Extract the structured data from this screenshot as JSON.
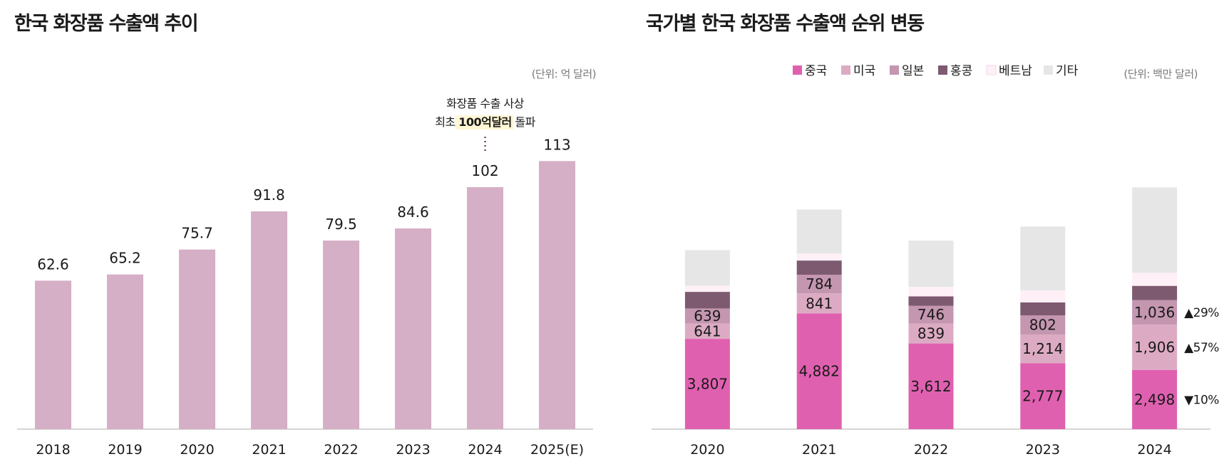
{
  "chart_data": [
    {
      "type": "bar",
      "title": "한국 화장품 수출액 추이",
      "unit": "(단위: 억 달러)",
      "categories": [
        "2018",
        "2019",
        "2020",
        "2021",
        "2022",
        "2023",
        "2024",
        "2025(E)"
      ],
      "values": [
        62.6,
        65.2,
        75.7,
        91.8,
        79.5,
        84.6,
        102,
        113
      ],
      "labels": [
        "62.6",
        "65.2",
        "75.7",
        "91.8",
        "79.5",
        "84.6",
        "102",
        "113"
      ],
      "ylim": [
        0,
        120
      ],
      "color": "#D5AFC6",
      "annotation": {
        "category": "2024",
        "line1": "화장품 수출 사상",
        "line2_prefix": "최초 ",
        "line2_highlight": "100억달러",
        "line2_suffix": " 돌파",
        "highlight_color": "#FFF6D5"
      }
    },
    {
      "type": "stacked-bar",
      "title": "국가별 한국 화장품 수출액 순위 변동",
      "unit": "(단위: 백만 달러)",
      "categories": [
        "2020",
        "2021",
        "2022",
        "2023",
        "2024"
      ],
      "series": [
        {
          "name": "중국",
          "color": "#E060B0",
          "values": [
            3807,
            4882,
            3612,
            2777,
            2498
          ],
          "labels": [
            "3,807",
            "4,882",
            "3,612",
            "2,777",
            "2,498"
          ]
        },
        {
          "name": "미국",
          "color": "#DCABC3",
          "values": [
            641,
            841,
            839,
            1214,
            1906
          ],
          "labels": [
            "641",
            "841",
            "839",
            "1,214",
            "1,906"
          ]
        },
        {
          "name": "일본",
          "color": "#C496B0",
          "values": [
            639,
            784,
            746,
            802,
            1036
          ],
          "labels": [
            "639",
            "784",
            "746",
            "802",
            "1,036"
          ]
        },
        {
          "name": "홍콩",
          "color": "#7E5A70",
          "values": [
            700,
            600,
            400,
            550,
            600
          ],
          "labels": [
            "",
            "",
            "",
            "",
            ""
          ]
        },
        {
          "name": "베트남",
          "color": "#FFF0F8",
          "values": [
            260,
            300,
            400,
            500,
            550
          ],
          "labels": [
            "",
            "",
            "",
            "",
            ""
          ]
        },
        {
          "name": "기타",
          "color": "#E6E6E6",
          "values": [
            1500,
            1850,
            1950,
            2700,
            3600
          ],
          "labels": [
            "",
            "",
            "",
            "",
            ""
          ]
        }
      ],
      "ylim": [
        0,
        12000
      ],
      "changes": [
        {
          "series": "일본",
          "text": "▲29%"
        },
        {
          "series": "미국",
          "text": "▲57%"
        },
        {
          "series": "중국",
          "text": "▼10%"
        }
      ]
    }
  ]
}
